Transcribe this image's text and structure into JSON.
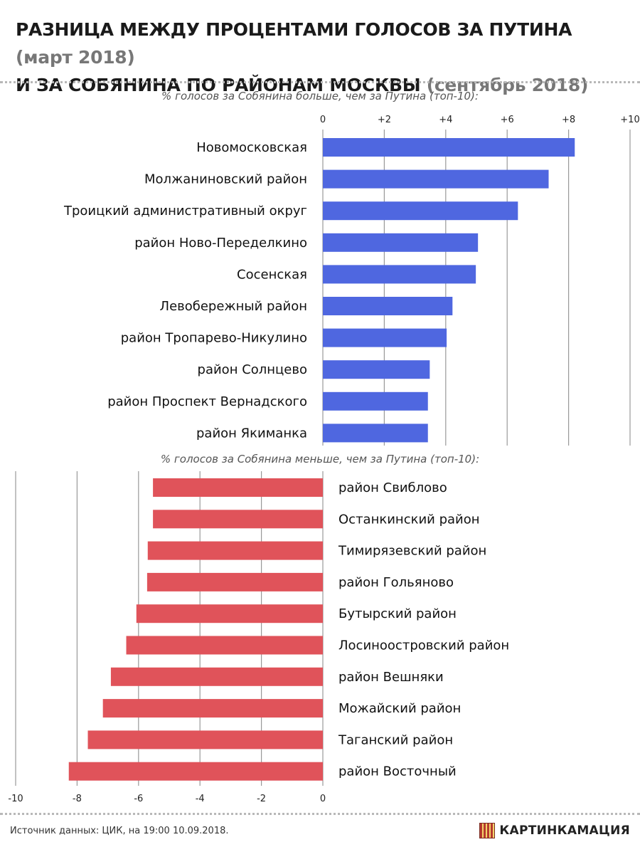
{
  "title": {
    "line1_main": "РАЗНИЦА МЕЖДУ ПРОЦЕНТАМИ ГОЛОСОВ ЗА ПУТИНА",
    "line1_note": "(март 2018)",
    "line2_main": "И ЗА СОБЯНИНА ПО РАЙОНАМ МОСКВЫ",
    "line2_note": "(сентябрь 2018)"
  },
  "footer": {
    "source": "Источник данных: ЦИК, на 19:00 10.09.2018.",
    "brand": "КАРТИНКАМАЦИЯ",
    "brand_icon": "kartinkamaciya-logo-icon"
  },
  "colors": {
    "positive": "#4f67e0",
    "negative": "#e0535a",
    "grid": "#999999"
  },
  "chart_data": [
    {
      "type": "bar",
      "orientation": "horizontal",
      "title": "% голосов за Собянина больше, чем за Путина (топ-10):",
      "xlim": [
        0,
        10
      ],
      "ticks": [
        0,
        2,
        4,
        6,
        8,
        10
      ],
      "tick_labels": [
        "0",
        "+2",
        "+4",
        "+6",
        "+8",
        "+10"
      ],
      "categories": [
        "Новомосковская",
        "Молжаниновский район",
        "Троицкий административный округ",
        "район Ново-Переделкино",
        "Сосенская",
        "Левобережный район",
        "район Тропарево-Никулино",
        "район Солнцево",
        "район Проспект Вернадского",
        "район Якиманка"
      ],
      "values": [
        8.2,
        7.35,
        6.35,
        5.05,
        4.98,
        4.22,
        4.03,
        3.48,
        3.42,
        3.42
      ]
    },
    {
      "type": "bar",
      "orientation": "horizontal",
      "title": "% голосов за Собянина меньше, чем за Путина (топ-10):",
      "xlim": [
        -10,
        0
      ],
      "ticks": [
        -10,
        -8,
        -6,
        -4,
        -2,
        0
      ],
      "tick_labels": [
        "-10",
        "-8",
        "-6",
        "-4",
        "-2",
        "0"
      ],
      "categories": [
        "район Свиблово",
        "Останкинский район",
        "Тимирязевский район",
        "район Гольяново",
        "Бутырский район",
        "Лосиноостровский район",
        "район Вешняки",
        "Можайский район",
        "Таганский район",
        "район Восточный"
      ],
      "values": [
        -5.53,
        -5.53,
        -5.7,
        -5.72,
        -6.07,
        -6.4,
        -6.9,
        -7.16,
        -7.65,
        -8.27
      ]
    }
  ]
}
